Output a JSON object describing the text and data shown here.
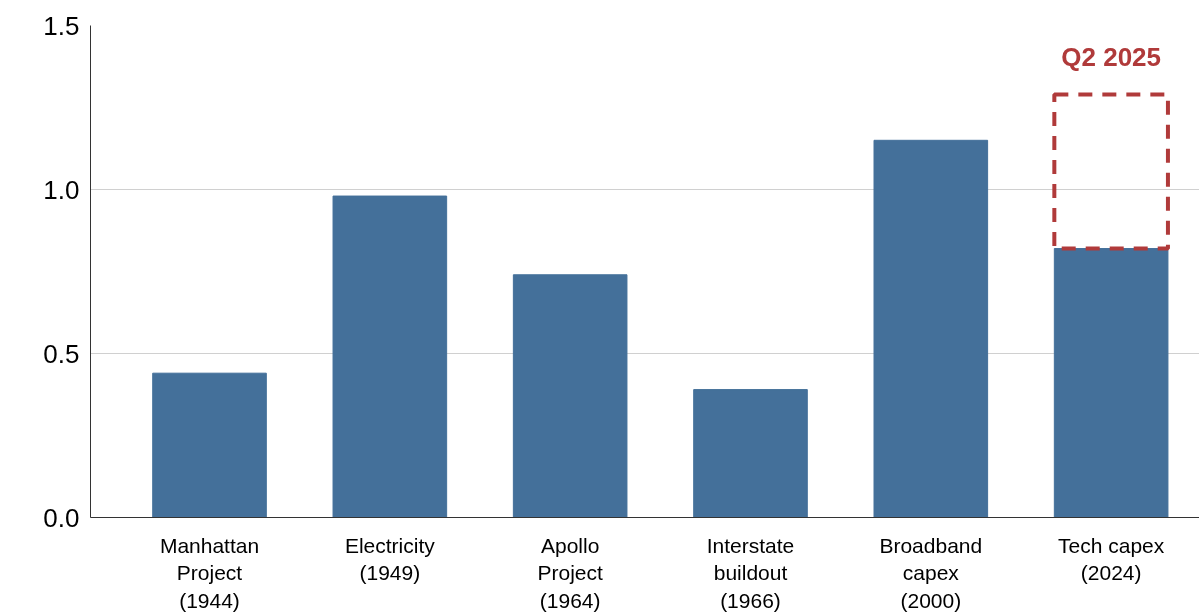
{
  "chart_data": {
    "type": "bar",
    "stacked": true,
    "categories": [
      "Manhattan\nProject\n(1944)",
      "Electricity\n(1949)",
      "Apollo\nProject\n(1964)",
      "Interstate\nbuildout\n(1966)",
      "Broadband\ncapex\n(2000)",
      "Tech capex\n(2024)"
    ],
    "series": [
      {
        "color": "#44709a",
        "values": [
          0.44,
          0.98,
          0.74,
          0.39,
          1.15,
          0.82
        ]
      },
      {
        "name": "Q2 2025",
        "color": "#b03a3a",
        "line_style": "dashed",
        "values": [
          null,
          null,
          null,
          null,
          null,
          0.47
        ]
      }
    ],
    "ylim": [
      0,
      1.5
    ],
    "yticks": [
      {
        "value": 0,
        "label": "0.0"
      },
      {
        "value": 0.5,
        "label": "0.5"
      },
      {
        "value": 1.0,
        "label": "1.0"
      },
      {
        "value": 1.5,
        "label": "1.5"
      }
    ],
    "grid": "y"
  }
}
